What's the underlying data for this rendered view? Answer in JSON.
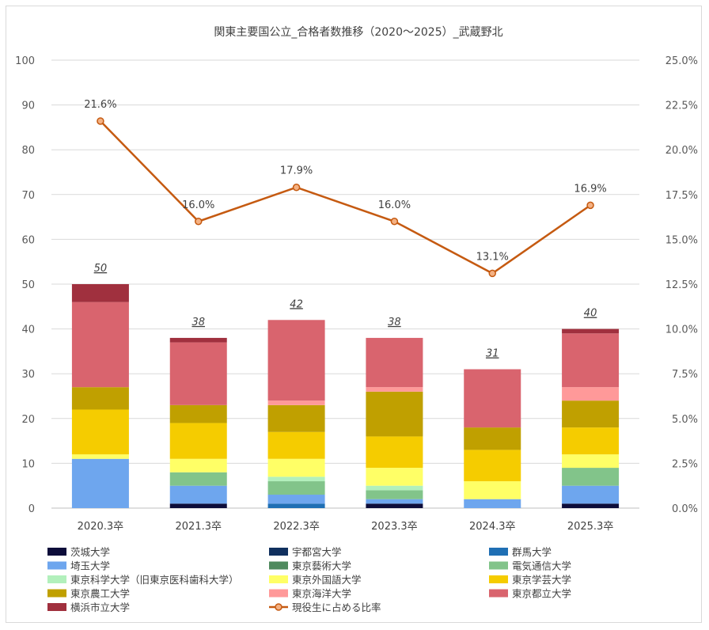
{
  "chart_data": {
    "type": "bar",
    "title": "関東主要国公立_合格者数推移（2020～2025）_武蔵野北",
    "categories": [
      "2020.3卒",
      "2021.3卒",
      "2022.3卒",
      "2023.3卒",
      "2024.3卒",
      "2025.3卒"
    ],
    "y_left": {
      "min": 0,
      "max": 100,
      "ticks": [
        "0",
        "10",
        "20",
        "30",
        "40",
        "50",
        "60",
        "70",
        "80",
        "90",
        "100"
      ]
    },
    "y_right": {
      "min": 0,
      "max": 25,
      "ticks": [
        "0.0%",
        "2.5%",
        "5.0%",
        "7.5%",
        "10.0%",
        "12.5%",
        "15.0%",
        "17.5%",
        "20.0%",
        "22.5%",
        "25.0%"
      ]
    },
    "totals": [
      "50",
      "38",
      "42",
      "38",
      "31",
      "40"
    ],
    "series": [
      {
        "name": "茨城大学",
        "color": "#0d0d3a",
        "values": [
          0,
          1,
          0,
          1,
          0,
          1
        ]
      },
      {
        "name": "宇都宮大学",
        "color": "#10305e",
        "values": [
          0,
          0,
          0,
          0,
          0,
          0
        ]
      },
      {
        "name": "群馬大学",
        "color": "#1f6fb4",
        "values": [
          0,
          0,
          1,
          0,
          0,
          0
        ]
      },
      {
        "name": "埼玉大学",
        "color": "#6ea6ee",
        "values": [
          11,
          4,
          2,
          1,
          2,
          4
        ]
      },
      {
        "name": "東京藝術大学",
        "color": "#4f8a5e",
        "values": [
          0,
          0,
          0,
          0,
          0,
          0
        ]
      },
      {
        "name": "電気通信大学",
        "color": "#82c48a",
        "values": [
          0,
          3,
          3,
          2,
          0,
          4
        ]
      },
      {
        "name": "東京科学大学（旧東京医科歯科大学）",
        "color": "#b2f0bc",
        "values": [
          0,
          0,
          1,
          1,
          0,
          0
        ]
      },
      {
        "name": "東京外国語大学",
        "color": "#ffff66",
        "values": [
          1,
          3,
          4,
          4,
          4,
          3
        ]
      },
      {
        "name": "東京学芸大学",
        "color": "#f5cc00",
        "values": [
          10,
          8,
          6,
          7,
          7,
          6
        ]
      },
      {
        "name": "東京農工大学",
        "color": "#c0a000",
        "values": [
          5,
          4,
          6,
          10,
          5,
          6
        ]
      },
      {
        "name": "東京海洋大学",
        "color": "#ff9999",
        "values": [
          0,
          0,
          1,
          1,
          0,
          3
        ]
      },
      {
        "name": "東京都立大学",
        "color": "#d9646e",
        "values": [
          19,
          14,
          18,
          11,
          13,
          12
        ]
      },
      {
        "name": "横浜市立大学",
        "color": "#a0303e",
        "values": [
          4,
          1,
          0,
          0,
          0,
          1
        ]
      }
    ],
    "line": {
      "name": "現役生に占める比率",
      "color": "#c55a11",
      "marker_fill": "#f4b183",
      "values": [
        21.6,
        16.0,
        17.9,
        16.0,
        13.1,
        16.9
      ],
      "labels": [
        "21.6%",
        "16.0%",
        "17.9%",
        "16.0%",
        "13.1%",
        "16.9%"
      ]
    }
  }
}
